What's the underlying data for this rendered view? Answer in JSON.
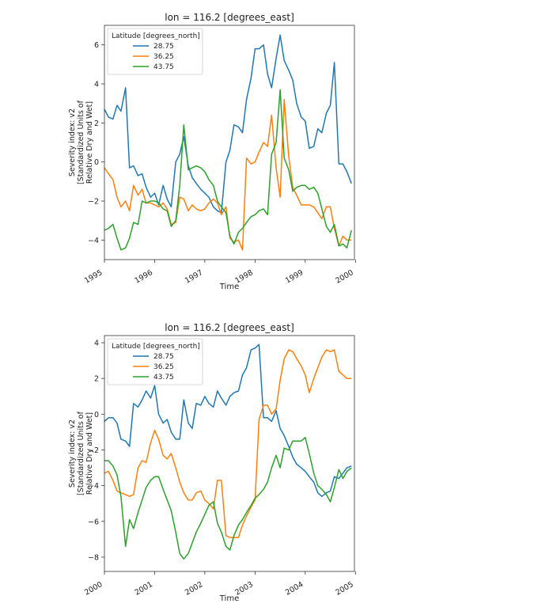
{
  "chart_data": [
    {
      "type": "line",
      "title": "lon = 116.2 [degrees_east]",
      "xlabel": "Time",
      "ylabel": [
        "Severity index: v2",
        "[Standardized Units of",
        "Relative Dry and Wet]"
      ],
      "xlim": [
        1995.0,
        1999.98
      ],
      "ylim": [
        -5.0,
        7.0
      ],
      "x_ticks": [
        1995,
        1996,
        1997,
        1998,
        1999,
        2000
      ],
      "x_tick_labels": [
        "1995",
        "1996",
        "1997",
        "1998",
        "1999",
        "2000"
      ],
      "y_ticks": [
        -4,
        -2,
        0,
        2,
        4,
        6
      ],
      "y_tick_labels": [
        "−4",
        "−2",
        "0",
        "2",
        "4",
        "6"
      ],
      "grid": false,
      "legend": {
        "title": "Latitude [degrees_north]",
        "placement": "top-left"
      },
      "series": [
        {
          "name": "28.75",
          "color": "#1f77b4",
          "x": [
            1995.0,
            1995.08,
            1995.17,
            1995.25,
            1995.33,
            1995.42,
            1995.5,
            1995.58,
            1995.67,
            1995.75,
            1995.83,
            1995.92,
            1996.0,
            1996.08,
            1996.17,
            1996.25,
            1996.33,
            1996.42,
            1996.5,
            1996.58,
            1996.67,
            1996.75,
            1996.83,
            1996.92,
            1997.0,
            1997.08,
            1997.17,
            1997.25,
            1997.33,
            1997.42,
            1997.5,
            1997.58,
            1997.67,
            1997.75,
            1997.83,
            1997.92,
            1998.0,
            1998.08,
            1998.17,
            1998.25,
            1998.33,
            1998.42,
            1998.5,
            1998.58,
            1998.67,
            1998.75,
            1998.83,
            1998.92,
            1999.0,
            1999.08,
            1999.17,
            1999.25,
            1999.33,
            1999.42,
            1999.5,
            1999.58,
            1999.67,
            1999.75,
            1999.83,
            1999.92
          ],
          "y": [
            2.7,
            2.3,
            2.2,
            2.9,
            2.6,
            3.8,
            -0.3,
            -0.2,
            -0.7,
            -0.6,
            -1.3,
            -1.8,
            -1.6,
            -2.2,
            -1.2,
            -1.9,
            -2.3,
            0.0,
            0.4,
            1.3,
            -0.2,
            -0.8,
            -1.1,
            -1.4,
            -1.6,
            -1.8,
            -2.3,
            -2.5,
            -2.6,
            0.0,
            0.6,
            1.9,
            1.8,
            1.5,
            3.2,
            4.3,
            5.8,
            5.8,
            6.0,
            4.5,
            3.8,
            5.3,
            6.5,
            5.2,
            4.7,
            4.2,
            3.0,
            2.3,
            2.1,
            0.7,
            0.8,
            1.7,
            1.5,
            2.5,
            2.9,
            5.1,
            -0.1,
            -0.1,
            -0.5,
            -1.1
          ]
        },
        {
          "name": "36.25",
          "color": "#ff7f0e",
          "x": [
            1995.0,
            1995.08,
            1995.17,
            1995.25,
            1995.33,
            1995.42,
            1995.5,
            1995.58,
            1995.67,
            1995.75,
            1995.83,
            1995.92,
            1996.0,
            1996.08,
            1996.17,
            1996.25,
            1996.33,
            1996.42,
            1996.5,
            1996.58,
            1996.67,
            1996.75,
            1996.83,
            1996.92,
            1997.0,
            1997.08,
            1997.17,
            1997.25,
            1997.33,
            1997.42,
            1997.5,
            1997.58,
            1997.67,
            1997.75,
            1997.83,
            1997.92,
            1998.0,
            1998.08,
            1998.17,
            1998.25,
            1998.33,
            1998.42,
            1998.5,
            1998.58,
            1998.67,
            1998.75,
            1998.83,
            1998.92,
            1999.0,
            1999.08,
            1999.17,
            1999.25,
            1999.33,
            1999.42,
            1999.5,
            1999.58,
            1999.67,
            1999.75,
            1999.83,
            1999.92
          ],
          "y": [
            -0.3,
            -0.6,
            -0.9,
            -1.8,
            -2.3,
            -2.0,
            -2.5,
            -1.2,
            -1.7,
            -1.4,
            -2.1,
            -2.1,
            -2.2,
            -2.3,
            -2.1,
            -2.4,
            -3.2,
            -3.1,
            -1.8,
            -1.9,
            -2.5,
            -2.2,
            -2.4,
            -2.5,
            -2.4,
            -2.1,
            -1.9,
            -2.1,
            -2.7,
            -2.3,
            -3.9,
            -4.1,
            -4.0,
            -4.5,
            0.2,
            -0.1,
            0.0,
            0.5,
            1.0,
            0.8,
            2.4,
            -0.3,
            -1.8,
            3.2,
            0.3,
            -1.3,
            -1.7,
            -2.2,
            -2.2,
            -2.2,
            -2.3,
            -2.6,
            -2.9,
            -2.3,
            -2.3,
            -3.4,
            -4.3,
            -3.8,
            -4.0,
            -4.0
          ]
        },
        {
          "name": "43.75",
          "color": "#2ca02c",
          "x": [
            1995.0,
            1995.08,
            1995.17,
            1995.25,
            1995.33,
            1995.42,
            1995.5,
            1995.58,
            1995.67,
            1995.75,
            1995.83,
            1995.92,
            1996.0,
            1996.08,
            1996.17,
            1996.25,
            1996.33,
            1996.42,
            1996.5,
            1996.58,
            1996.67,
            1996.75,
            1996.83,
            1996.92,
            1997.0,
            1997.08,
            1997.17,
            1997.25,
            1997.33,
            1997.42,
            1997.5,
            1997.58,
            1997.67,
            1997.75,
            1997.83,
            1997.92,
            1998.0,
            1998.08,
            1998.17,
            1998.25,
            1998.33,
            1998.42,
            1998.5,
            1998.58,
            1998.67,
            1998.75,
            1998.83,
            1998.92,
            1999.0,
            1999.08,
            1999.17,
            1999.25,
            1999.33,
            1999.42,
            1999.5,
            1999.58,
            1999.67,
            1999.75,
            1999.83,
            1999.92
          ],
          "y": [
            -3.5,
            -3.4,
            -3.2,
            -3.9,
            -4.5,
            -4.4,
            -3.9,
            -3.1,
            -3.2,
            -2.0,
            -2.1,
            -2.0,
            -2.0,
            -2.1,
            -2.4,
            -2.5,
            -3.3,
            -3.0,
            -1.2,
            1.9,
            -0.4,
            -0.3,
            -0.2,
            -0.3,
            -0.5,
            -0.9,
            -1.2,
            -2.0,
            -2.3,
            -2.6,
            -3.8,
            -4.2,
            -3.6,
            -3.4,
            -3.1,
            -2.8,
            -2.7,
            -2.5,
            -2.4,
            -2.7,
            0.4,
            1.0,
            3.7,
            0.2,
            -0.4,
            -1.5,
            -1.3,
            -1.2,
            -1.2,
            -1.4,
            -1.3,
            -1.6,
            -2.4,
            -3.3,
            -3.6,
            -3.2,
            -4.3,
            -4.2,
            -4.4,
            -3.5
          ]
        }
      ]
    },
    {
      "type": "line",
      "title": "lon = 116.2 [degrees_east]",
      "xlabel": "Time",
      "ylabel": [
        "Severity index: v2",
        "[Standardized Units of",
        "Relative Dry and Wet]"
      ],
      "xlim": [
        2000.0,
        2004.98
      ],
      "ylim": [
        -8.8,
        4.4
      ],
      "x_ticks": [
        2000,
        2001,
        2002,
        2003,
        2004,
        2005
      ],
      "x_tick_labels": [
        "2000",
        "2001",
        "2002",
        "2003",
        "2004",
        "2005"
      ],
      "y_ticks": [
        -8,
        -6,
        -4,
        -2,
        0,
        2,
        4
      ],
      "y_tick_labels": [
        "−8",
        "−6",
        "−4",
        "−2",
        "0",
        "2",
        "4"
      ],
      "grid": false,
      "legend": {
        "title": "Latitude [degrees_north]",
        "placement": "top-left"
      },
      "series": [
        {
          "name": "28.75",
          "color": "#1f77b4",
          "x": [
            2000.0,
            2000.08,
            2000.17,
            2000.25,
            2000.33,
            2000.42,
            2000.5,
            2000.58,
            2000.67,
            2000.75,
            2000.83,
            2000.92,
            2001.0,
            2001.08,
            2001.17,
            2001.25,
            2001.33,
            2001.42,
            2001.5,
            2001.58,
            2001.67,
            2001.75,
            2001.83,
            2001.92,
            2002.0,
            2002.08,
            2002.17,
            2002.25,
            2002.33,
            2002.42,
            2002.5,
            2002.58,
            2002.67,
            2002.75,
            2002.83,
            2002.92,
            2003.0,
            2003.08,
            2003.17,
            2003.25,
            2003.33,
            2003.42,
            2003.5,
            2003.58,
            2003.67,
            2003.75,
            2003.83,
            2003.92,
            2004.0,
            2004.08,
            2004.17,
            2004.25,
            2004.33,
            2004.42,
            2004.5,
            2004.58,
            2004.67,
            2004.75,
            2004.83,
            2004.92
          ],
          "y": [
            -0.4,
            -0.2,
            -0.2,
            -0.5,
            -1.4,
            -1.5,
            -1.8,
            0.6,
            0.4,
            0.8,
            1.3,
            0.9,
            1.6,
            0.0,
            -0.5,
            -0.3,
            -1.0,
            -1.4,
            -1.4,
            0.8,
            -0.5,
            -0.8,
            0.6,
            0.5,
            1.0,
            0.6,
            0.4,
            1.3,
            0.9,
            0.5,
            1.0,
            1.2,
            1.3,
            2.2,
            2.6,
            3.6,
            3.7,
            3.9,
            -0.2,
            -0.2,
            -0.4,
            0.2,
            -0.8,
            -1.2,
            -1.8,
            -2.4,
            -2.8,
            -3.0,
            -3.2,
            -3.5,
            -3.8,
            -4.4,
            -4.6,
            -4.4,
            -4.3,
            -3.5,
            -3.6,
            -3.3,
            -3.0,
            -2.9
          ]
        },
        {
          "name": "36.25",
          "color": "#ff7f0e",
          "x": [
            2000.0,
            2000.08,
            2000.17,
            2000.25,
            2000.33,
            2000.42,
            2000.5,
            2000.58,
            2000.67,
            2000.75,
            2000.83,
            2000.92,
            2001.0,
            2001.08,
            2001.17,
            2001.25,
            2001.33,
            2001.42,
            2001.5,
            2001.58,
            2001.67,
            2001.75,
            2001.83,
            2001.92,
            2002.0,
            2002.08,
            2002.17,
            2002.25,
            2002.33,
            2002.42,
            2002.5,
            2002.58,
            2002.67,
            2002.75,
            2002.83,
            2002.92,
            2003.0,
            2003.08,
            2003.17,
            2003.25,
            2003.33,
            2003.42,
            2003.5,
            2003.58,
            2003.67,
            2003.75,
            2003.83,
            2003.92,
            2004.0,
            2004.08,
            2004.17,
            2004.25,
            2004.33,
            2004.42,
            2004.5,
            2004.58,
            2004.67,
            2004.75,
            2004.83,
            2004.92
          ],
          "y": [
            -3.3,
            -3.2,
            -3.7,
            -4.3,
            -4.4,
            -4.5,
            -4.6,
            -4.5,
            -3.0,
            -2.6,
            -2.7,
            -1.6,
            -0.9,
            -1.4,
            -2.3,
            -2.5,
            -2.2,
            -3.0,
            -3.8,
            -4.4,
            -4.8,
            -4.8,
            -4.4,
            -4.3,
            -4.8,
            -5.0,
            -5.3,
            -3.7,
            -3.7,
            -6.8,
            -6.9,
            -6.9,
            -6.9,
            -6.2,
            -5.7,
            -5.2,
            -4.8,
            -0.3,
            0.5,
            0.5,
            0.0,
            0.3,
            1.9,
            3.1,
            3.6,
            3.5,
            3.1,
            2.7,
            2.2,
            1.2,
            2.0,
            2.6,
            3.2,
            3.6,
            3.5,
            3.6,
            2.4,
            2.2,
            2.0,
            2.0
          ]
        },
        {
          "name": "43.75",
          "color": "#2ca02c",
          "x": [
            2000.0,
            2000.08,
            2000.17,
            2000.25,
            2000.33,
            2000.42,
            2000.5,
            2000.58,
            2000.67,
            2000.75,
            2000.83,
            2000.92,
            2001.0,
            2001.08,
            2001.17,
            2001.25,
            2001.33,
            2001.42,
            2001.5,
            2001.58,
            2001.67,
            2001.75,
            2001.83,
            2001.92,
            2002.0,
            2002.08,
            2002.17,
            2002.25,
            2002.33,
            2002.42,
            2002.5,
            2002.58,
            2002.67,
            2002.75,
            2002.83,
            2002.92,
            2003.0,
            2003.08,
            2003.17,
            2003.25,
            2003.33,
            2003.42,
            2003.5,
            2003.58,
            2003.67,
            2003.75,
            2003.83,
            2003.92,
            2004.0,
            2004.08,
            2004.17,
            2004.25,
            2004.33,
            2004.42,
            2004.5,
            2004.58,
            2004.67,
            2004.75,
            2004.83,
            2004.92
          ],
          "y": [
            -2.6,
            -2.6,
            -2.9,
            -3.4,
            -4.6,
            -7.4,
            -5.9,
            -6.4,
            -5.5,
            -4.8,
            -4.1,
            -3.7,
            -3.5,
            -3.5,
            -4.2,
            -4.8,
            -5.4,
            -6.6,
            -7.8,
            -8.1,
            -7.8,
            -7.2,
            -6.6,
            -6.1,
            -5.6,
            -5.1,
            -4.9,
            -6.1,
            -6.6,
            -7.4,
            -7.6,
            -6.8,
            -6.2,
            -5.9,
            -5.5,
            -5.1,
            -4.7,
            -4.5,
            -4.2,
            -3.8,
            -3.0,
            -2.3,
            -3.0,
            -1.9,
            -2.0,
            -1.5,
            -1.5,
            -1.5,
            -1.3,
            -2.2,
            -3.3,
            -4.0,
            -4.2,
            -4.5,
            -4.9,
            -4.1,
            -3.1,
            -3.6,
            -3.2,
            -3.0
          ]
        }
      ]
    }
  ]
}
